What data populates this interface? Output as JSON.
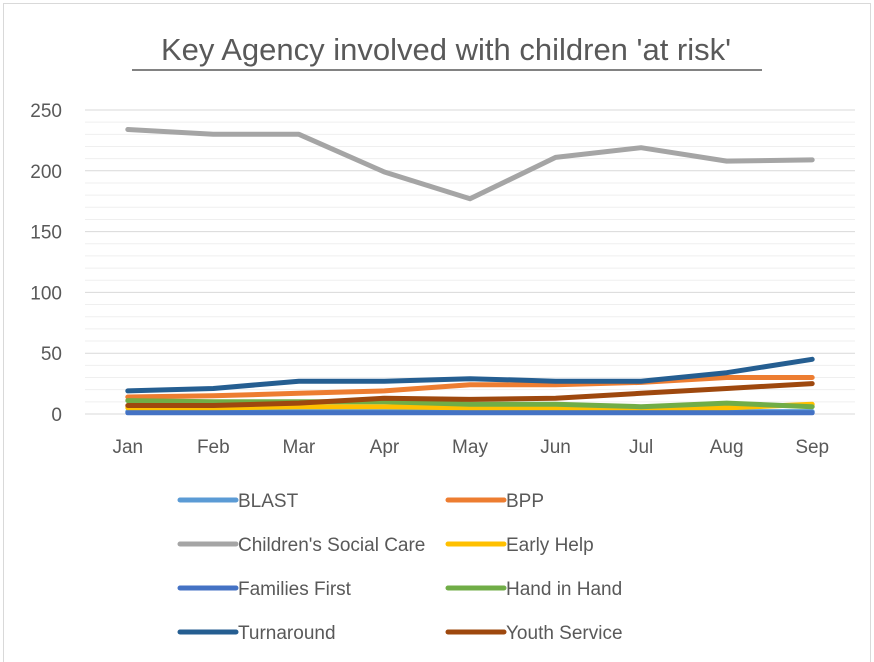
{
  "chart_data": {
    "type": "line",
    "title": "Key Agency involved with children 'at risk'",
    "categories": [
      "Jan",
      "Feb",
      "Mar",
      "Apr",
      "May",
      "Jun",
      "Jul",
      "Aug",
      "Sep"
    ],
    "ylim": [
      0,
      250
    ],
    "yticks": [
      0,
      50,
      100,
      150,
      200,
      250
    ],
    "grid": true,
    "legend": "bottom",
    "series": [
      {
        "name": "BLAST",
        "color": "#5b9bd5",
        "values": [
          2,
          2,
          2,
          2,
          2,
          2,
          2,
          2,
          2
        ]
      },
      {
        "name": "BPP",
        "color": "#ed7d31",
        "values": [
          14,
          15,
          17,
          19,
          24,
          24,
          26,
          30,
          30
        ]
      },
      {
        "name": "Children's Social Care",
        "color": "#a5a5a5",
        "values": [
          234,
          230,
          230,
          199,
          177,
          211,
          219,
          208,
          209
        ]
      },
      {
        "name": "Early Help",
        "color": "#ffc000",
        "values": [
          5,
          5,
          6,
          6,
          5,
          5,
          5,
          5,
          8
        ]
      },
      {
        "name": "Families First",
        "color": "#4472c4",
        "values": [
          1,
          1,
          1,
          1,
          1,
          1,
          1,
          1,
          1
        ]
      },
      {
        "name": "Hand in Hand",
        "color": "#70ad47",
        "values": [
          11,
          10,
          10,
          10,
          8,
          8,
          6,
          9,
          6
        ]
      },
      {
        "name": "Turnaround",
        "color": "#255e91",
        "values": [
          19,
          21,
          27,
          27,
          29,
          27,
          27,
          34,
          45
        ]
      },
      {
        "name": "Youth Service",
        "color": "#9e480e",
        "values": [
          7,
          7,
          9,
          13,
          12,
          13,
          17,
          21,
          25
        ]
      }
    ]
  }
}
